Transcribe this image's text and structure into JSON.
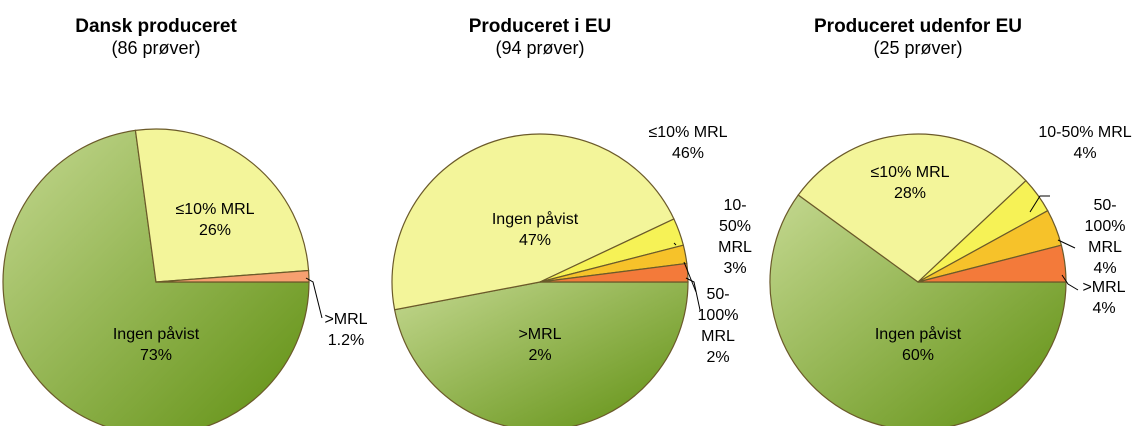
{
  "chart_data": [
    {
      "type": "pie",
      "title": "Dansk produceret",
      "subtitle": "(86 prøver)",
      "categories": [
        "Ingen påvist",
        "≤10% MRL",
        ">MRL"
      ],
      "values": [
        73,
        26,
        1.2
      ],
      "value_labels": [
        "73%",
        "26%",
        "1.2%"
      ],
      "colors": [
        "#76a123",
        "#f3f59a",
        "#f7a070"
      ]
    },
    {
      "type": "pie",
      "title": "Produceret i EU",
      "subtitle": "(94 prøver)",
      "categories": [
        "Ingen påvist",
        "≤10% MRL",
        "10-50% MRL",
        "50-100% MRL",
        ">MRL"
      ],
      "values": [
        47,
        46,
        3,
        2,
        2
      ],
      "value_labels": [
        "47%",
        "46%",
        "3%",
        "2%",
        "2%"
      ],
      "colors": [
        "#76a123",
        "#f3f59a",
        "#f6f256",
        "#f6c22a",
        "#f37a3a"
      ]
    },
    {
      "type": "pie",
      "title": "Produceret udenfor EU",
      "subtitle": "(25 prøver)",
      "categories": [
        "Ingen påvist",
        "≤10% MRL",
        "10-50% MRL",
        "50-100% MRL",
        ">MRL"
      ],
      "values": [
        60,
        28,
        4,
        4,
        4
      ],
      "value_labels": [
        "60%",
        "28%",
        "4%",
        "4%",
        "4%"
      ],
      "colors": [
        "#76a123",
        "#f3f59a",
        "#f6f256",
        "#f6c22a",
        "#f37a3a"
      ]
    }
  ]
}
